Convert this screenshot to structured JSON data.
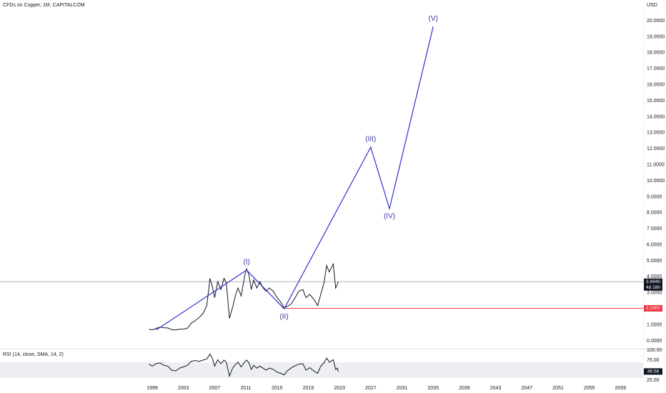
{
  "chart_data": [
    {
      "type": "line",
      "title": "CFDs on Copper, 1M, CAPITALCOM",
      "currency": "USD",
      "xlim": [
        1979.5,
        2061.9
      ],
      "ylim": [
        -0.45,
        21.3
      ],
      "xticks": [
        1999,
        2003,
        2007,
        2011,
        2015,
        2019,
        2023,
        2027,
        2031,
        2035,
        2039,
        2043,
        2047,
        2051,
        2055,
        2059
      ],
      "yticks": [
        {
          "value": 0,
          "label": "0.0000"
        },
        {
          "value": 1,
          "label": "1.0000"
        },
        {
          "value": 2,
          "label": "2.0000"
        },
        {
          "value": 3,
          "label": "3.0000"
        },
        {
          "value": 4,
          "label": "4.0000"
        },
        {
          "value": 5,
          "label": "5.0000"
        },
        {
          "value": 6,
          "label": "6.0000"
        },
        {
          "value": 7,
          "label": "7.0000"
        },
        {
          "value": 8,
          "label": "8.0000"
        },
        {
          "value": 9,
          "label": "9.0000"
        },
        {
          "value": 10,
          "label": "10.0000"
        },
        {
          "value": 11,
          "label": "11.0000"
        },
        {
          "value": 12,
          "label": "12.0000"
        },
        {
          "value": 13,
          "label": "13.0000"
        },
        {
          "value": 14,
          "label": "14.0000"
        },
        {
          "value": 15,
          "label": "15.0000"
        },
        {
          "value": 16,
          "label": "16.0000"
        },
        {
          "value": 17,
          "label": "17.0000"
        },
        {
          "value": 18,
          "label": "18.0000"
        },
        {
          "value": 19,
          "label": "19.0000"
        },
        {
          "value": 20,
          "label": "20.0000"
        }
      ],
      "series": [
        {
          "name": "Copper",
          "color": "#131722",
          "x": [
            1998.6,
            1999.0,
            1999.5,
            2000.0,
            2000.5,
            2001.0,
            2001.5,
            2002.0,
            2002.5,
            2003.0,
            2003.5,
            2004.0,
            2004.5,
            2005.0,
            2005.5,
            2006.0,
            2006.4,
            2006.7,
            2007.0,
            2007.4,
            2007.8,
            2008.2,
            2008.5,
            2008.9,
            2009.3,
            2009.7,
            2010.0,
            2010.4,
            2010.9,
            2011.1,
            2011.4,
            2011.7,
            2012.0,
            2012.4,
            2012.8,
            2013.2,
            2013.6,
            2014.0,
            2014.5,
            2015.0,
            2015.5,
            2015.9,
            2016.3,
            2016.8,
            2017.2,
            2017.8,
            2018.3,
            2018.7,
            2019.2,
            2019.7,
            2020.2,
            2020.6,
            2021.0,
            2021.35,
            2021.7,
            2022.2,
            2022.5,
            2022.7,
            2022.85
          ],
          "values": [
            0.72,
            0.68,
            0.78,
            0.85,
            0.82,
            0.8,
            0.7,
            0.68,
            0.72,
            0.73,
            0.78,
            1.1,
            1.25,
            1.45,
            1.7,
            2.2,
            3.9,
            3.4,
            2.7,
            3.7,
            3.2,
            3.9,
            3.6,
            1.4,
            2.1,
            2.9,
            3.3,
            2.8,
            4.2,
            4.5,
            4.1,
            3.2,
            3.8,
            3.3,
            3.7,
            3.3,
            3.1,
            3.3,
            3.1,
            2.7,
            2.4,
            2.05,
            2.15,
            2.3,
            2.6,
            3.1,
            3.2,
            2.7,
            2.9,
            2.6,
            2.2,
            2.9,
            3.6,
            4.7,
            4.3,
            4.8,
            3.3,
            3.5,
            3.69
          ]
        }
      ],
      "waves": {
        "color": "#2f2fcf",
        "label_color": "#3434a8",
        "x": [
          1999.5,
          2011.1,
          2015.9,
          2027.0,
          2029.4,
          2035.0
        ],
        "values": [
          0.67,
          4.42,
          2.0,
          12.1,
          8.26,
          19.64
        ],
        "labels": [
          null,
          "(I)",
          "(II)",
          "(III)",
          "(IV)",
          "(V)"
        ]
      },
      "levels": [
        {
          "value": 3.694,
          "label": "3.6940",
          "countdown": "4d 18h",
          "color": "#131722",
          "line_color": "#b2b5be"
        },
        {
          "value": 2.03,
          "label": "2.0300",
          "color": "#f23645",
          "line_color": "#f23645",
          "x_start": 2016.0
        }
      ]
    },
    {
      "type": "line",
      "title": "RSI (14, close, SMA, 14, 2)",
      "ylim": [
        16,
        100
      ],
      "yticks": [
        {
          "value": 100,
          "label": "100.00"
        },
        {
          "value": 75,
          "label": "75.00"
        },
        {
          "value": 25,
          "label": "25.00"
        }
      ],
      "band": [
        30,
        70
      ],
      "color": "#131722",
      "xlim": [
        1979.5,
        2061.9
      ],
      "x": [
        1998.6,
        1999.0,
        1999.5,
        2000.0,
        2000.5,
        2001.0,
        2001.5,
        2002.0,
        2002.5,
        2003.0,
        2003.5,
        2004.0,
        2004.5,
        2005.0,
        2005.5,
        2006.0,
        2006.4,
        2006.7,
        2007.0,
        2007.4,
        2007.8,
        2008.2,
        2008.5,
        2008.9,
        2009.3,
        2009.7,
        2010.0,
        2010.4,
        2010.9,
        2011.1,
        2011.4,
        2011.7,
        2012.0,
        2012.4,
        2012.8,
        2013.2,
        2013.6,
        2014.0,
        2014.5,
        2015.0,
        2015.5,
        2015.9,
        2016.3,
        2016.8,
        2017.2,
        2017.8,
        2018.3,
        2018.7,
        2019.2,
        2019.7,
        2020.2,
        2020.6,
        2021.0,
        2021.35,
        2021.7,
        2022.2,
        2022.5,
        2022.7,
        2022.85
      ],
      "values": [
        65,
        60,
        66,
        68,
        62,
        60,
        50,
        48,
        55,
        58,
        62,
        72,
        74,
        72,
        75,
        78,
        90,
        80,
        60,
        76,
        66,
        75,
        70,
        35,
        55,
        65,
        70,
        58,
        72,
        75,
        68,
        52,
        62,
        55,
        60,
        55,
        50,
        55,
        52,
        45,
        42,
        38,
        48,
        55,
        60,
        65,
        66,
        50,
        56,
        48,
        42,
        60,
        68,
        80,
        70,
        76,
        52,
        55,
        46.58
      ]
    }
  ]
}
